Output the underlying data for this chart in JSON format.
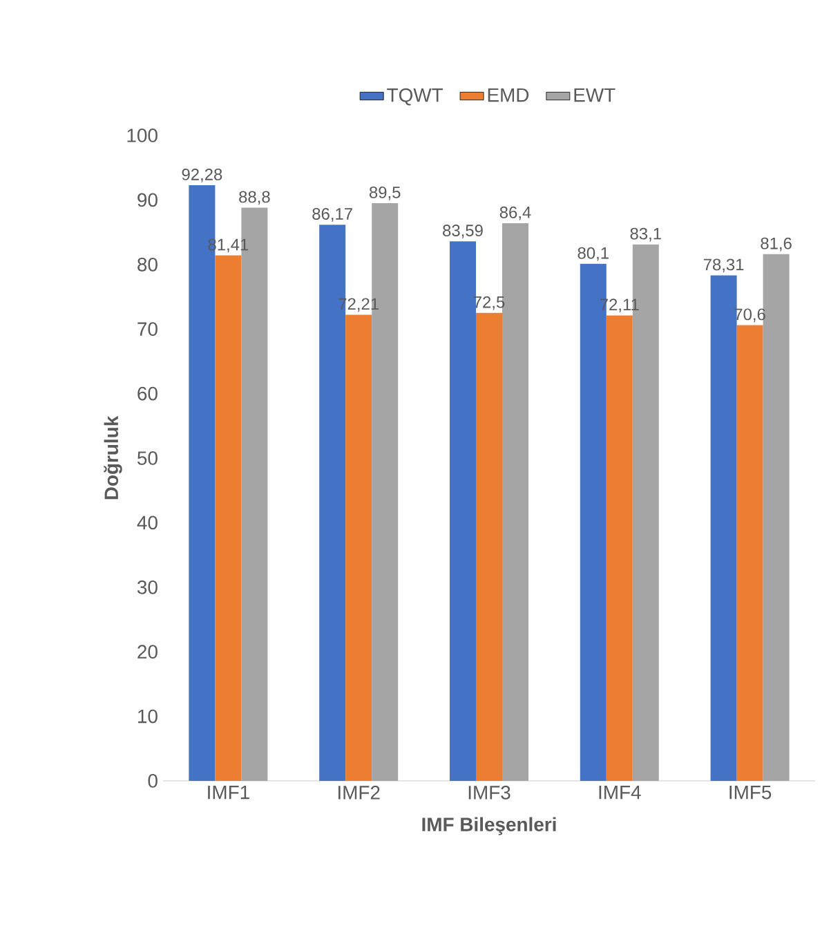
{
  "chart_data": {
    "type": "bar",
    "xlabel": "IMF Bileşenleri",
    "ylabel": "Doğruluk",
    "categories": [
      "IMF1",
      "IMF2",
      "IMF3",
      "IMF4",
      "IMF5"
    ],
    "series": [
      {
        "name": "TQWT",
        "color": "#4472c4",
        "values": [
          92.28,
          86.17,
          83.59,
          80.1,
          78.31
        ],
        "value_labels": [
          "92,28",
          "86,17",
          "83,59",
          "80,1",
          "78,31"
        ]
      },
      {
        "name": "EMD",
        "color": "#ed7d31",
        "values": [
          81.41,
          72.21,
          72.5,
          72.11,
          70.6
        ],
        "value_labels": [
          "81,41",
          "72,21",
          "72,5",
          "72,11",
          "70,6"
        ]
      },
      {
        "name": "EWT",
        "color": "#a5a5a5",
        "values": [
          88.8,
          89.5,
          86.4,
          83.1,
          81.6
        ],
        "value_labels": [
          "88,8",
          "89,5",
          "86,4",
          "83,1",
          "81,6"
        ]
      }
    ],
    "ylim": [
      0,
      100
    ],
    "yticks": [
      0,
      10,
      20,
      30,
      40,
      50,
      60,
      70,
      80,
      90,
      100
    ],
    "grid": false,
    "legend": "top"
  }
}
